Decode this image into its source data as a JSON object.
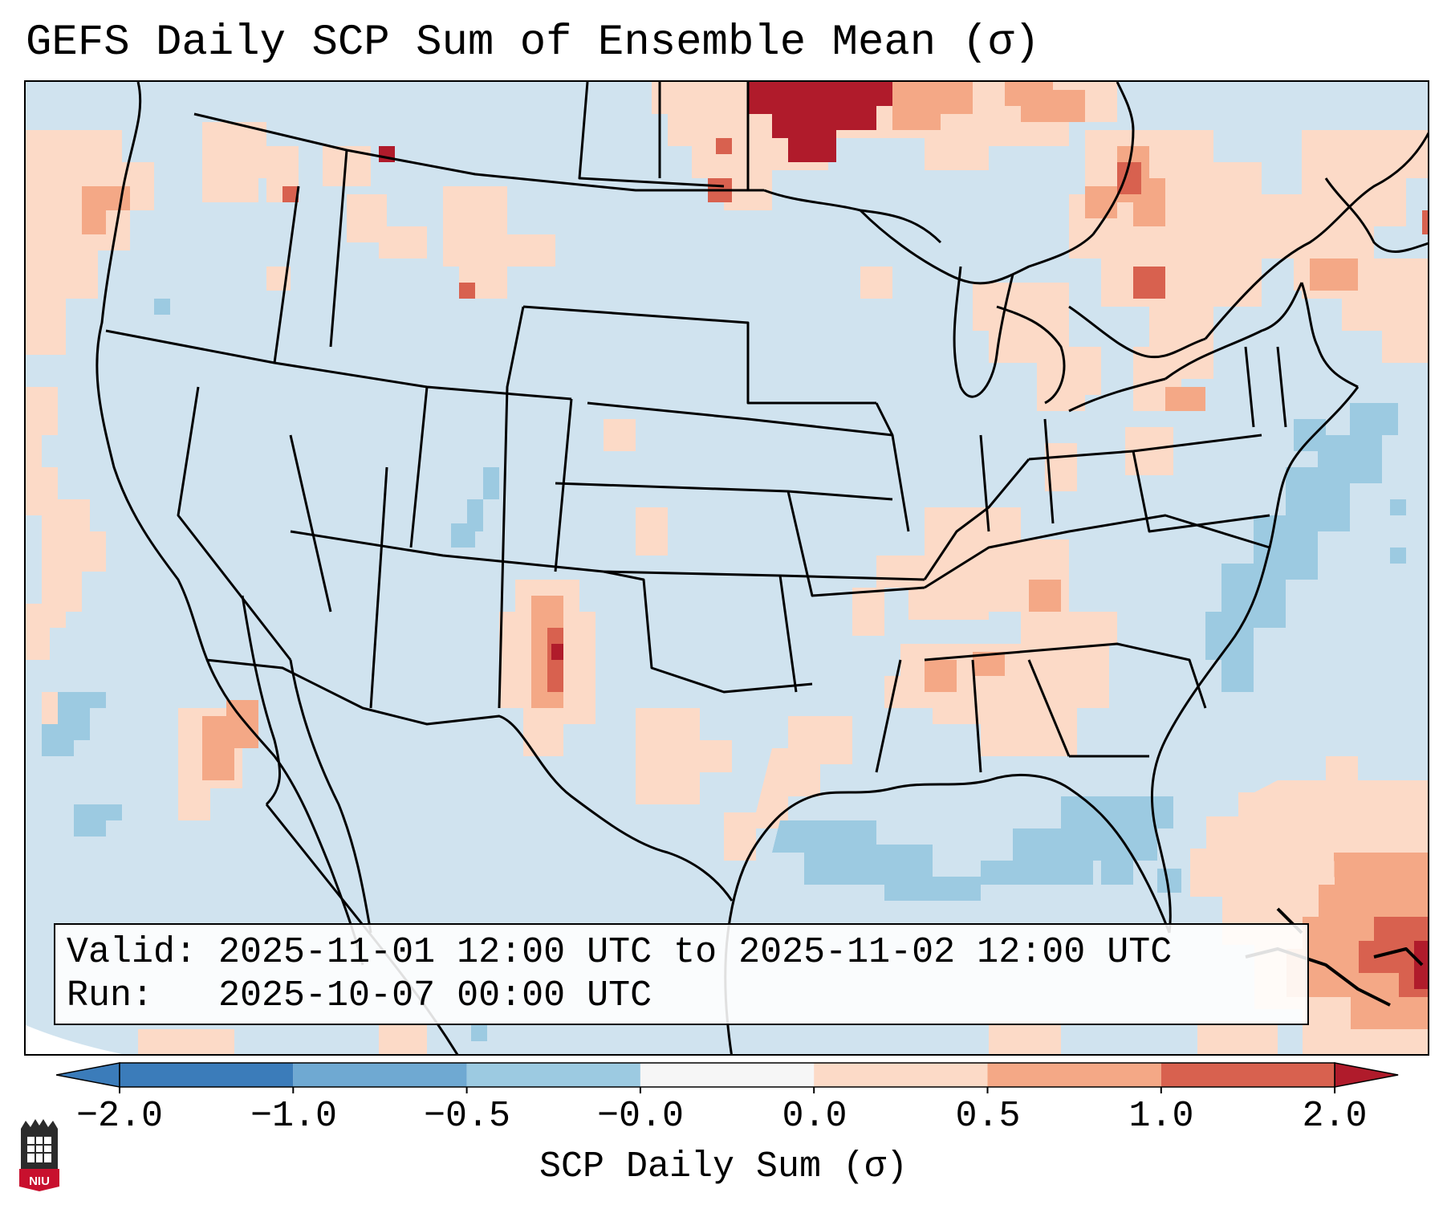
{
  "header": {
    "title": "GEFS Daily SCP Sum of Ensemble Mean (σ)"
  },
  "info": {
    "valid_line": "Valid: 2025-11-01 12:00 UTC to 2025-11-02 12:00 UTC",
    "run_line": "Run:   2025-10-07 00:00 UTC"
  },
  "colorbar": {
    "label": "SCP Daily Sum (σ)",
    "ticks": [
      "−2.0",
      "−1.0",
      "−0.5",
      "−0.0",
      "0.0",
      "0.5",
      "1.0",
      "2.0"
    ],
    "colors": [
      "#3b7cba",
      "#6fa9d2",
      "#9ccae1",
      "#d1e4ef",
      "#fcdac7",
      "#f4a886",
      "#d8614f",
      "#b01b2b"
    ]
  },
  "map": {
    "projection": "Lambert conformal, CONUS",
    "features": [
      "state-borders",
      "coastlines",
      "country-borders"
    ]
  },
  "branding": {
    "logo_text": "NIU"
  }
}
